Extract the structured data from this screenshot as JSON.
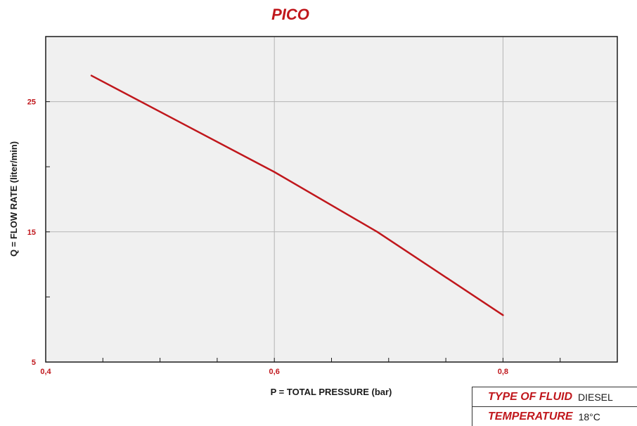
{
  "colors": {
    "accent": "#c0171c",
    "plot_bg": "#f0f0f0",
    "grid": "#b5b5b5",
    "axis": "#1a1a1a"
  },
  "chart_data": {
    "type": "line",
    "title": "PICO",
    "xlabel": "P = TOTAL PRESSURE (bar)",
    "ylabel": "Q = FLOW RATE (liter/min)",
    "xlim": [
      0.4,
      0.9
    ],
    "ylim": [
      5,
      30
    ],
    "x_ticks": [
      {
        "value": 0.4,
        "label": "0,4"
      },
      {
        "value": 0.6,
        "label": "0,6"
      },
      {
        "value": 0.8,
        "label": "0,8"
      }
    ],
    "y_ticks": [
      {
        "value": 5,
        "label": "5"
      },
      {
        "value": 15,
        "label": "15"
      },
      {
        "value": 25,
        "label": "25"
      }
    ],
    "x_minor_step": 0.05,
    "y_minor_step": 5,
    "grid": true,
    "series": [
      {
        "x": [
          0.44,
          0.6,
          0.69,
          0.8
        ],
        "y": [
          27.0,
          19.6,
          15.0,
          8.6
        ]
      }
    ]
  },
  "info": {
    "rows": [
      {
        "label": "TYPE OF FLUID",
        "value": "DIESEL"
      },
      {
        "label": "TEMPERATURE",
        "value": "18°C"
      }
    ]
  }
}
